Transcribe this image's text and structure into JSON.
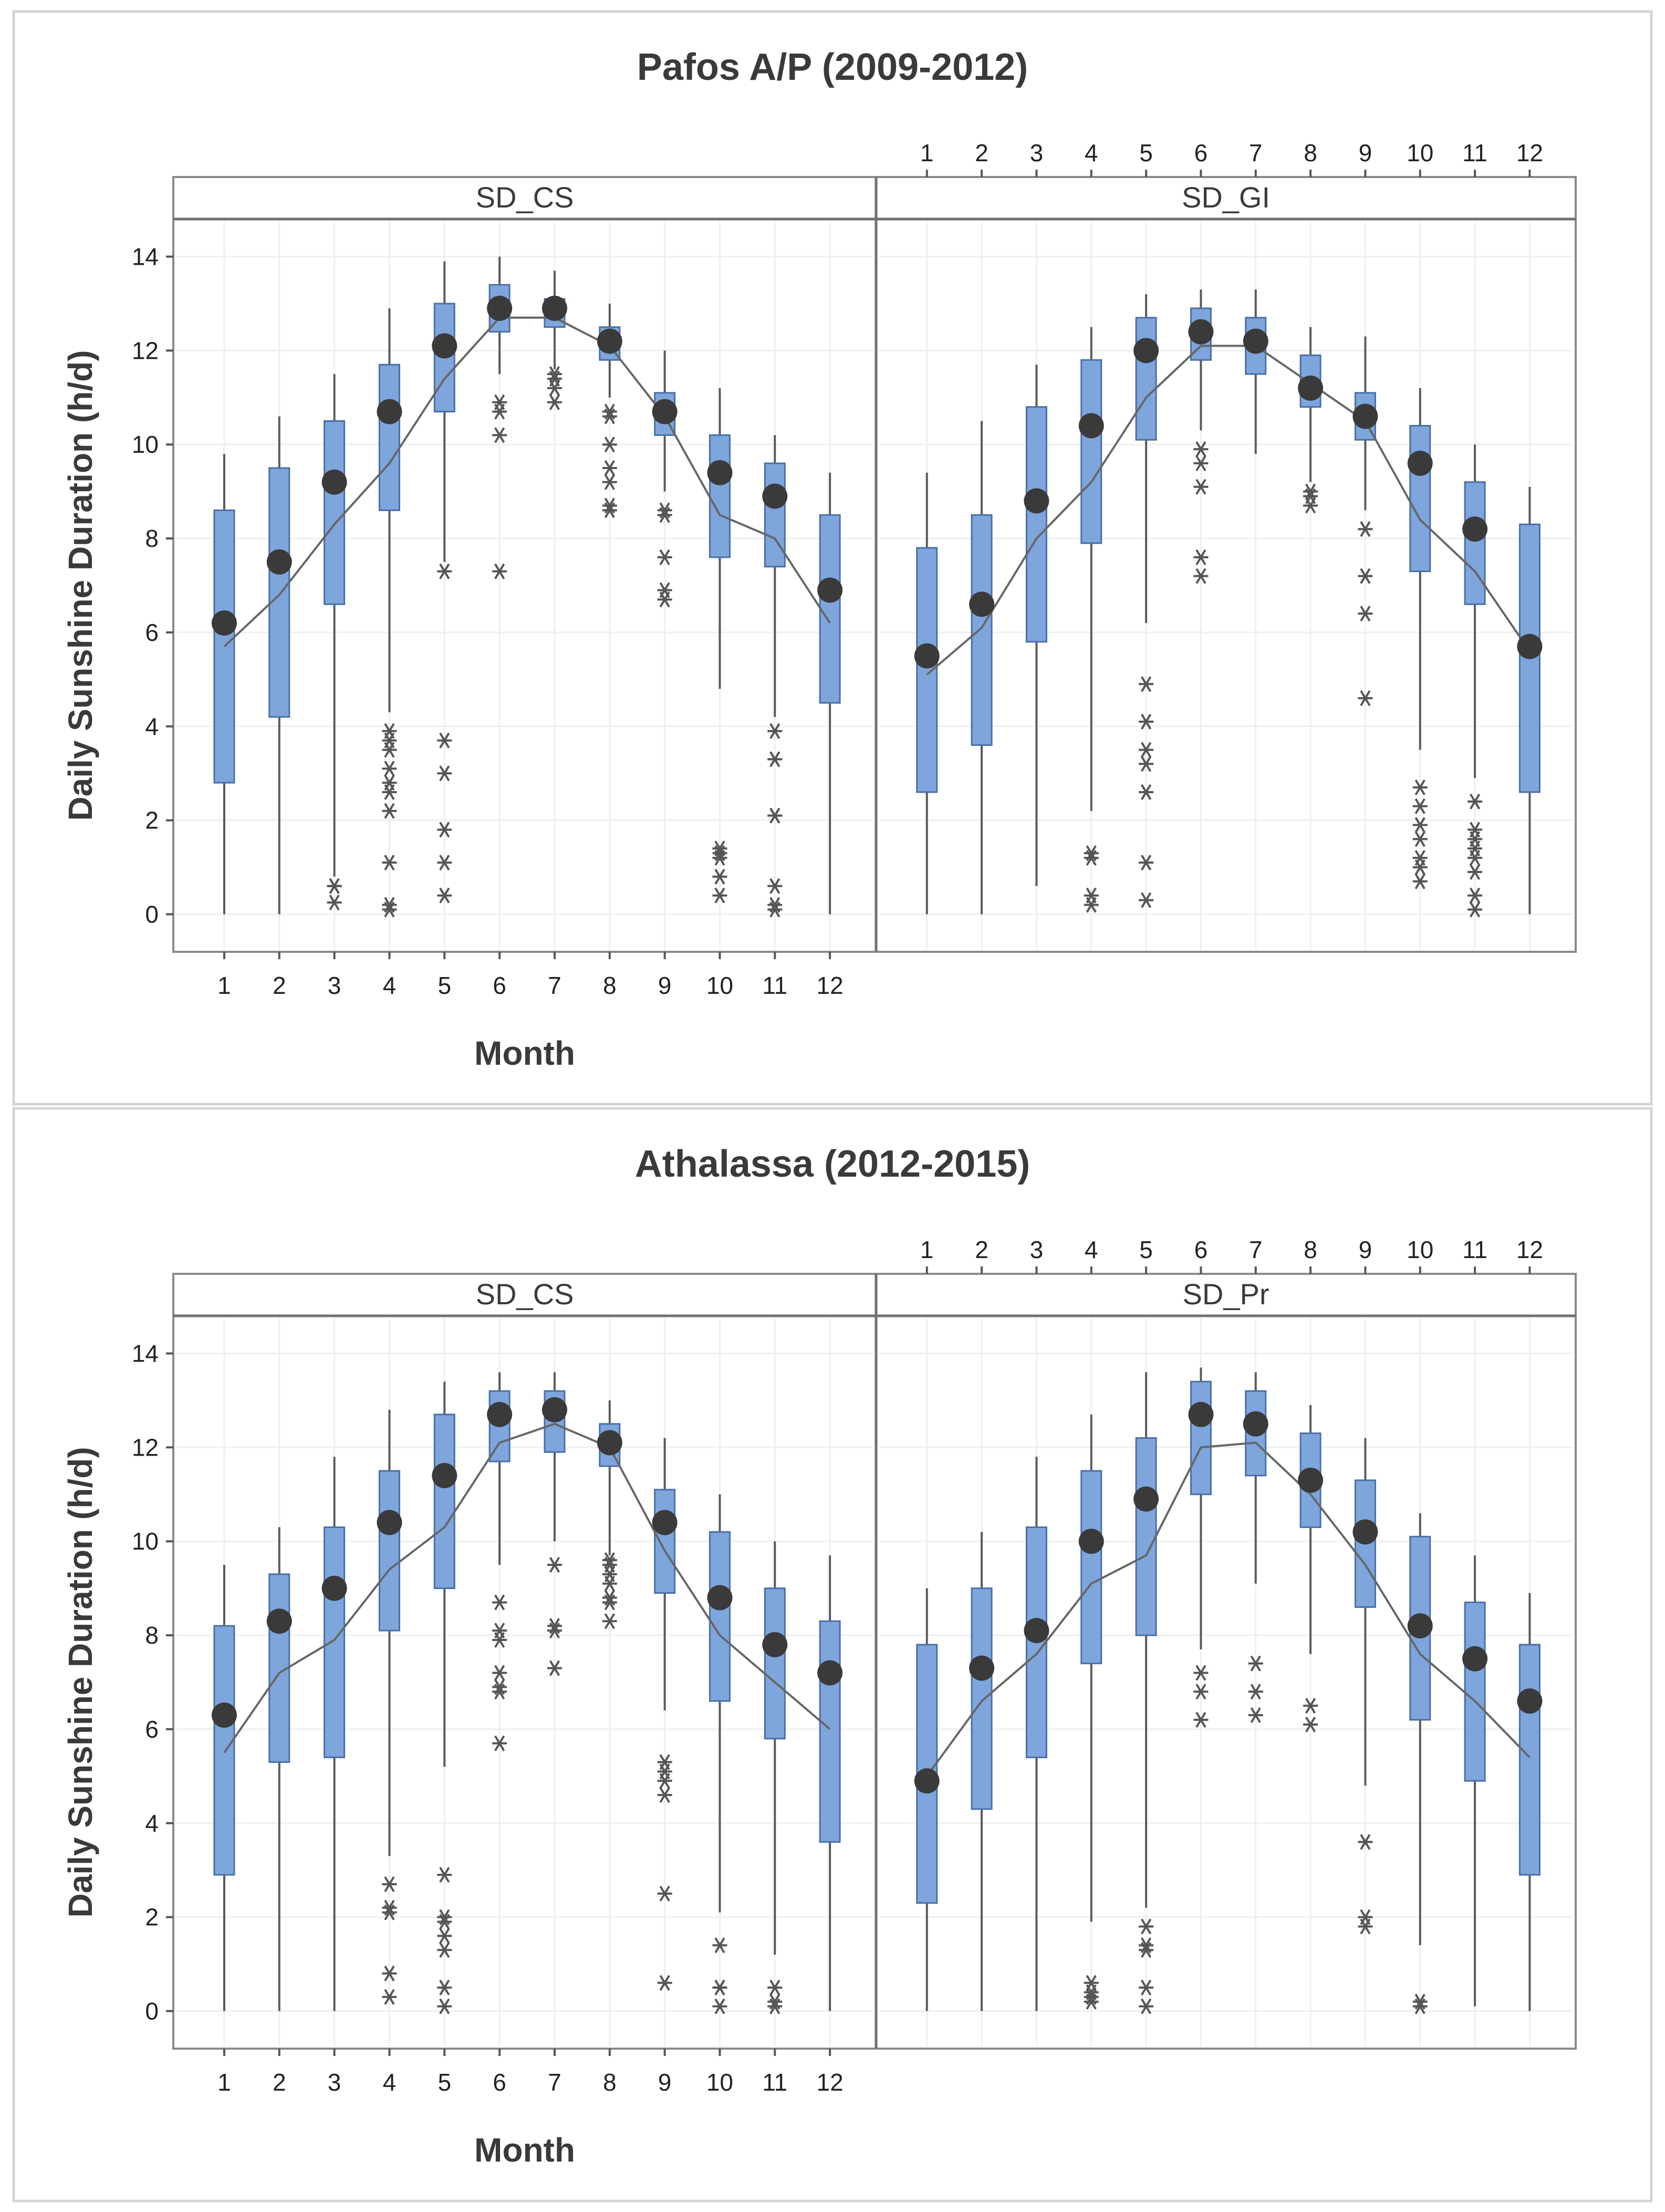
{
  "chart_data": [
    {
      "type": "boxplot",
      "title": "Pafos A/P (2009-2012)",
      "xlabel": "Month",
      "ylabel": "Daily Sunshine Duration (h/d)",
      "ylim": [
        -0.8,
        14.8
      ],
      "yticks": [
        0,
        2,
        4,
        6,
        8,
        10,
        12,
        14
      ],
      "categories": [
        "1",
        "2",
        "3",
        "4",
        "5",
        "6",
        "7",
        "8",
        "9",
        "10",
        "11",
        "12"
      ],
      "colors": {
        "box": "#7ea6dd",
        "mean": "#3a3a3a",
        "line": "#666666"
      },
      "panels": [
        {
          "name": "SD_CS",
          "months": [
            {
              "wlo": 0,
              "q1": 2.8,
              "q3": 8.6,
              "whi": 9.8,
              "mean": 6.2,
              "line": 5.7,
              "outliers": []
            },
            {
              "wlo": 0,
              "q1": 4.2,
              "q3": 9.5,
              "whi": 10.6,
              "mean": 7.5,
              "line": 6.8,
              "outliers": []
            },
            {
              "wlo": 0.8,
              "q1": 6.6,
              "q3": 10.5,
              "whi": 11.5,
              "mean": 9.2,
              "line": 8.3,
              "outliers": [
                0.6,
                0.6,
                0.25
              ]
            },
            {
              "wlo": 4.3,
              "q1": 8.6,
              "q3": 11.7,
              "whi": 12.9,
              "mean": 10.7,
              "line": 9.6,
              "outliers": [
                3.9,
                3.7,
                3.5,
                3.1,
                2.8,
                2.6,
                2.2,
                1.1,
                0.2,
                0.1
              ]
            },
            {
              "wlo": 7.5,
              "q1": 10.7,
              "q3": 13.0,
              "whi": 13.9,
              "mean": 12.1,
              "line": 11.4,
              "outliers": [
                7.3,
                3.7,
                3.0,
                1.8,
                1.1,
                0.4
              ]
            },
            {
              "wlo": 11.5,
              "q1": 12.4,
              "q3": 13.4,
              "whi": 14.0,
              "mean": 12.9,
              "line": 12.7,
              "outliers": [
                10.9,
                10.7,
                10.2,
                7.3
              ]
            },
            {
              "wlo": 11.6,
              "q1": 12.5,
              "q3": 13.1,
              "whi": 13.7,
              "mean": 12.9,
              "line": 12.7,
              "outliers": [
                11.5,
                11.4,
                11.2,
                10.9
              ]
            },
            {
              "wlo": 11.0,
              "q1": 11.8,
              "q3": 12.5,
              "whi": 13.0,
              "mean": 12.2,
              "line": 12.1,
              "outliers": [
                10.7,
                10.6,
                10.0,
                9.5,
                9.2,
                8.7,
                8.6
              ]
            },
            {
              "wlo": 9.0,
              "q1": 10.2,
              "q3": 11.1,
              "whi": 12.0,
              "mean": 10.7,
              "line": 10.6,
              "outliers": [
                8.6,
                8.5,
                7.6,
                6.9,
                6.7
              ]
            },
            {
              "wlo": 4.8,
              "q1": 7.6,
              "q3": 10.2,
              "whi": 11.2,
              "mean": 9.4,
              "line": 8.5,
              "outliers": [
                1.4,
                1.3,
                1.2,
                0.8,
                0.4
              ]
            },
            {
              "wlo": 4.2,
              "q1": 7.4,
              "q3": 9.6,
              "whi": 10.2,
              "mean": 8.9,
              "line": 8.0,
              "outliers": [
                3.9,
                3.3,
                3.3,
                2.1,
                2.1,
                0.6,
                0.2,
                0.1
              ]
            },
            {
              "wlo": 0,
              "q1": 4.5,
              "q3": 8.5,
              "whi": 9.4,
              "mean": 6.9,
              "line": 6.2,
              "outliers": []
            }
          ]
        },
        {
          "name": "SD_GI",
          "months": [
            {
              "wlo": 0,
              "q1": 2.6,
              "q3": 7.8,
              "whi": 9.4,
              "mean": 5.5,
              "line": 5.1,
              "outliers": []
            },
            {
              "wlo": 0,
              "q1": 3.6,
              "q3": 8.5,
              "whi": 10.5,
              "mean": 6.6,
              "line": 6.1,
              "outliers": []
            },
            {
              "wlo": 0.6,
              "q1": 5.8,
              "q3": 10.8,
              "whi": 11.7,
              "mean": 8.8,
              "line": 8.0,
              "outliers": []
            },
            {
              "wlo": 2.2,
              "q1": 7.9,
              "q3": 11.8,
              "whi": 12.5,
              "mean": 10.4,
              "line": 9.2,
              "outliers": [
                1.3,
                1.2,
                0.4,
                0.2
              ]
            },
            {
              "wlo": 6.2,
              "q1": 10.1,
              "q3": 12.7,
              "whi": 13.2,
              "mean": 12.0,
              "line": 11.0,
              "outliers": [
                4.9,
                4.1,
                3.5,
                3.2,
                2.6,
                1.1,
                0.3
              ]
            },
            {
              "wlo": 10.3,
              "q1": 11.8,
              "q3": 12.9,
              "whi": 13.3,
              "mean": 12.4,
              "line": 12.1,
              "outliers": [
                9.9,
                9.6,
                9.1,
                7.6,
                7.2
              ]
            },
            {
              "wlo": 9.8,
              "q1": 11.5,
              "q3": 12.7,
              "whi": 13.3,
              "mean": 12.2,
              "line": 12.1,
              "outliers": []
            },
            {
              "wlo": 9.2,
              "q1": 10.8,
              "q3": 11.9,
              "whi": 12.5,
              "mean": 11.2,
              "line": 11.3,
              "outliers": [
                9.0,
                8.9,
                8.7
              ]
            },
            {
              "wlo": 8.6,
              "q1": 10.1,
              "q3": 11.1,
              "whi": 12.3,
              "mean": 10.6,
              "line": 10.5,
              "outliers": [
                8.2,
                7.2,
                6.4,
                4.6
              ]
            },
            {
              "wlo": 3.5,
              "q1": 7.3,
              "q3": 10.4,
              "whi": 11.2,
              "mean": 9.6,
              "line": 8.4,
              "outliers": [
                2.7,
                2.3,
                1.9,
                1.6,
                1.2,
                1.0,
                0.7
              ]
            },
            {
              "wlo": 2.9,
              "q1": 6.6,
              "q3": 9.2,
              "whi": 10.0,
              "mean": 8.2,
              "line": 7.3,
              "outliers": [
                2.4,
                1.8,
                1.6,
                1.4,
                1.2,
                0.9,
                0.4,
                0.1
              ]
            },
            {
              "wlo": 0,
              "q1": 2.6,
              "q3": 8.3,
              "whi": 9.1,
              "mean": 5.7,
              "line": 5.6,
              "outliers": []
            }
          ]
        }
      ]
    },
    {
      "type": "boxplot",
      "title": "Athalassa (2012-2015)",
      "xlabel": "Month",
      "ylabel": "Daily Sunshine Duration (h/d)",
      "ylim": [
        -0.8,
        14.8
      ],
      "yticks": [
        0,
        2,
        4,
        6,
        8,
        10,
        12,
        14
      ],
      "categories": [
        "1",
        "2",
        "3",
        "4",
        "5",
        "6",
        "7",
        "8",
        "9",
        "10",
        "11",
        "12"
      ],
      "colors": {
        "box": "#7ea6dd",
        "mean": "#3a3a3a",
        "line": "#666666"
      },
      "panels": [
        {
          "name": "SD_CS",
          "months": [
            {
              "wlo": 0,
              "q1": 2.9,
              "q3": 8.2,
              "whi": 9.5,
              "mean": 6.3,
              "line": 5.5,
              "outliers": []
            },
            {
              "wlo": 0,
              "q1": 5.3,
              "q3": 9.3,
              "whi": 10.3,
              "mean": 8.3,
              "line": 7.2,
              "outliers": []
            },
            {
              "wlo": 0,
              "q1": 5.4,
              "q3": 10.3,
              "whi": 11.8,
              "mean": 9.0,
              "line": 7.9,
              "outliers": []
            },
            {
              "wlo": 3.3,
              "q1": 8.1,
              "q3": 11.5,
              "whi": 12.8,
              "mean": 10.4,
              "line": 9.4,
              "outliers": [
                2.7,
                2.2,
                2.1,
                0.8,
                0.3
              ]
            },
            {
              "wlo": 5.2,
              "q1": 9.0,
              "q3": 12.7,
              "whi": 13.4,
              "mean": 11.4,
              "line": 10.3,
              "outliers": [
                2.9,
                2.0,
                1.9,
                1.6,
                1.3,
                0.5,
                0.1
              ]
            },
            {
              "wlo": 9.5,
              "q1": 11.7,
              "q3": 13.2,
              "whi": 13.6,
              "mean": 12.7,
              "line": 12.1,
              "outliers": [
                8.7,
                8.1,
                7.9,
                7.2,
                6.9,
                6.8,
                5.7
              ]
            },
            {
              "wlo": 10.0,
              "q1": 11.9,
              "q3": 13.2,
              "whi": 13.6,
              "mean": 12.8,
              "line": 12.5,
              "outliers": [
                9.5,
                8.2,
                8.1,
                7.3
              ]
            },
            {
              "wlo": 9.7,
              "q1": 11.6,
              "q3": 12.5,
              "whi": 13.0,
              "mean": 12.1,
              "line": 12.0,
              "outliers": [
                9.6,
                9.5,
                9.3,
                9.1,
                8.8,
                8.7,
                8.3
              ]
            },
            {
              "wlo": 6.4,
              "q1": 8.9,
              "q3": 11.1,
              "whi": 12.2,
              "mean": 10.4,
              "line": 9.8,
              "outliers": [
                5.3,
                5.1,
                4.9,
                4.6,
                2.5,
                0.6
              ]
            },
            {
              "wlo": 2.1,
              "q1": 6.6,
              "q3": 10.2,
              "whi": 11.0,
              "mean": 8.8,
              "line": 8.0,
              "outliers": [
                1.4,
                0.5,
                0.5,
                0.1
              ]
            },
            {
              "wlo": 1.2,
              "q1": 5.8,
              "q3": 9.0,
              "whi": 10.0,
              "mean": 7.8,
              "line": 7.0,
              "outliers": [
                0.5,
                0.2,
                0.1
              ]
            },
            {
              "wlo": 0,
              "q1": 3.6,
              "q3": 8.3,
              "whi": 9.7,
              "mean": 7.2,
              "line": 6.0,
              "outliers": []
            }
          ]
        },
        {
          "name": "SD_Pr",
          "months": [
            {
              "wlo": 0,
              "q1": 2.3,
              "q3": 7.8,
              "whi": 9.0,
              "mean": 4.9,
              "line": 5.0,
              "outliers": []
            },
            {
              "wlo": 0,
              "q1": 4.3,
              "q3": 9.0,
              "whi": 10.2,
              "mean": 7.3,
              "line": 6.6,
              "outliers": []
            },
            {
              "wlo": 0,
              "q1": 5.4,
              "q3": 10.3,
              "whi": 11.8,
              "mean": 8.1,
              "line": 7.6,
              "outliers": []
            },
            {
              "wlo": 1.9,
              "q1": 7.4,
              "q3": 11.5,
              "whi": 12.7,
              "mean": 10.0,
              "line": 9.1,
              "outliers": [
                0.6,
                0.4,
                0.3,
                0.2
              ]
            },
            {
              "wlo": 2.2,
              "q1": 8.0,
              "q3": 12.2,
              "whi": 13.6,
              "mean": 10.9,
              "line": 9.7,
              "outliers": [
                1.8,
                1.4,
                1.3,
                0.5,
                0.1
              ]
            },
            {
              "wlo": 7.7,
              "q1": 11.0,
              "q3": 13.4,
              "whi": 13.7,
              "mean": 12.7,
              "line": 12.0,
              "outliers": [
                7.2,
                6.8,
                6.2
              ]
            },
            {
              "wlo": 9.1,
              "q1": 11.4,
              "q3": 13.2,
              "whi": 13.6,
              "mean": 12.5,
              "line": 12.1,
              "outliers": [
                7.4,
                6.8,
                6.3
              ]
            },
            {
              "wlo": 7.6,
              "q1": 10.3,
              "q3": 12.3,
              "whi": 12.9,
              "mean": 11.3,
              "line": 11.0,
              "outliers": [
                6.5,
                6.1
              ]
            },
            {
              "wlo": 4.8,
              "q1": 8.6,
              "q3": 11.3,
              "whi": 12.2,
              "mean": 10.2,
              "line": 9.5,
              "outliers": [
                3.6,
                2.0,
                1.8
              ]
            },
            {
              "wlo": 1.4,
              "q1": 6.2,
              "q3": 10.1,
              "whi": 10.6,
              "mean": 8.2,
              "line": 7.6,
              "outliers": [
                0.2,
                0.1
              ]
            },
            {
              "wlo": 0.1,
              "q1": 4.9,
              "q3": 8.7,
              "whi": 9.7,
              "mean": 7.5,
              "line": 6.6,
              "outliers": []
            },
            {
              "wlo": 0,
              "q1": 2.9,
              "q3": 7.8,
              "whi": 8.9,
              "mean": 6.6,
              "line": 5.4,
              "outliers": []
            }
          ]
        }
      ]
    }
  ]
}
